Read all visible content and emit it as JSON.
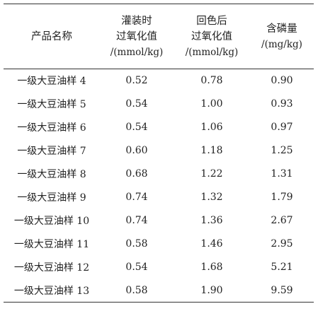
{
  "table": {
    "headers": {
      "product": "产品名称",
      "peroxide_filling": [
        "灌装时",
        "过氧化值",
        "/(mmol/kg)"
      ],
      "peroxide_reverted": [
        "回色后",
        "过氧化值",
        "/(mmol/kg)"
      ],
      "phosphorus": [
        "含磷量",
        "/(mg/kg)"
      ]
    },
    "rows": [
      {
        "name": "一级大豆油样 4",
        "filling": "0.52",
        "reverted": "0.78",
        "phosphorus": "0.90"
      },
      {
        "name": "一级大豆油样 5",
        "filling": "0.54",
        "reverted": "1.00",
        "phosphorus": "0.93"
      },
      {
        "name": "一级大豆油样 6",
        "filling": "0.54",
        "reverted": "1.06",
        "phosphorus": "0.97"
      },
      {
        "name": "一级大豆油样 7",
        "filling": "0.60",
        "reverted": "1.18",
        "phosphorus": "1.25"
      },
      {
        "name": "一级大豆油样 8",
        "filling": "0.68",
        "reverted": "1.22",
        "phosphorus": "1.31"
      },
      {
        "name": "一级大豆油样 9",
        "filling": "0.74",
        "reverted": "1.32",
        "phosphorus": "1.79"
      },
      {
        "name": "一级大豆油样 10",
        "filling": "0.74",
        "reverted": "1.36",
        "phosphorus": "2.67"
      },
      {
        "name": "一级大豆油样 11",
        "filling": "0.58",
        "reverted": "1.46",
        "phosphorus": "2.95"
      },
      {
        "name": "一级大豆油样 12",
        "filling": "0.54",
        "reverted": "1.68",
        "phosphorus": "5.21"
      },
      {
        "name": "一级大豆油样 13",
        "filling": "0.58",
        "reverted": "1.90",
        "phosphorus": "9.59"
      }
    ]
  }
}
